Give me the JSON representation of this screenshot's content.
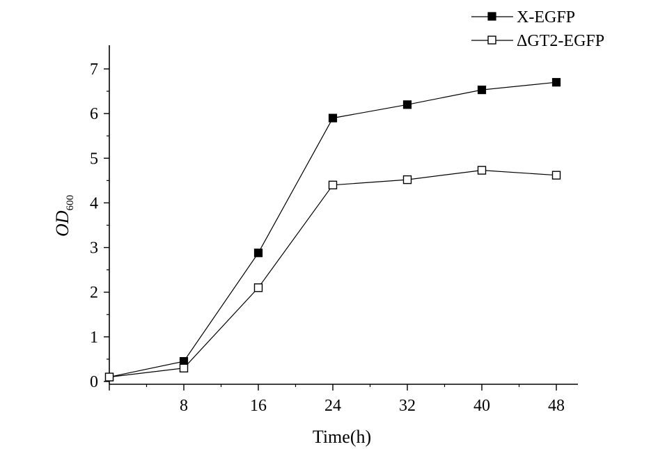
{
  "chart_data": {
    "type": "line",
    "title": "",
    "xlabel": "Time(h)",
    "ylabel": "OD",
    "ylabel_subscript": "600",
    "x": [
      0,
      8,
      16,
      24,
      32,
      40,
      48
    ],
    "x_ticks": [
      8,
      16,
      24,
      32,
      40,
      48
    ],
    "y_ticks": [
      0,
      1,
      2,
      3,
      4,
      5,
      6,
      7
    ],
    "xlim": [
      0,
      50
    ],
    "ylim": [
      0,
      7.5
    ],
    "legend_position": "top-right",
    "grid": false,
    "series": [
      {
        "name": "X-EGFP",
        "marker": "filled-square",
        "values": [
          0.1,
          0.45,
          2.88,
          5.9,
          6.2,
          6.53,
          6.7
        ]
      },
      {
        "name": "ΔGT2-EGFP",
        "marker": "open-square",
        "values": [
          0.1,
          0.3,
          2.1,
          4.4,
          4.52,
          4.73,
          4.62
        ]
      }
    ]
  }
}
